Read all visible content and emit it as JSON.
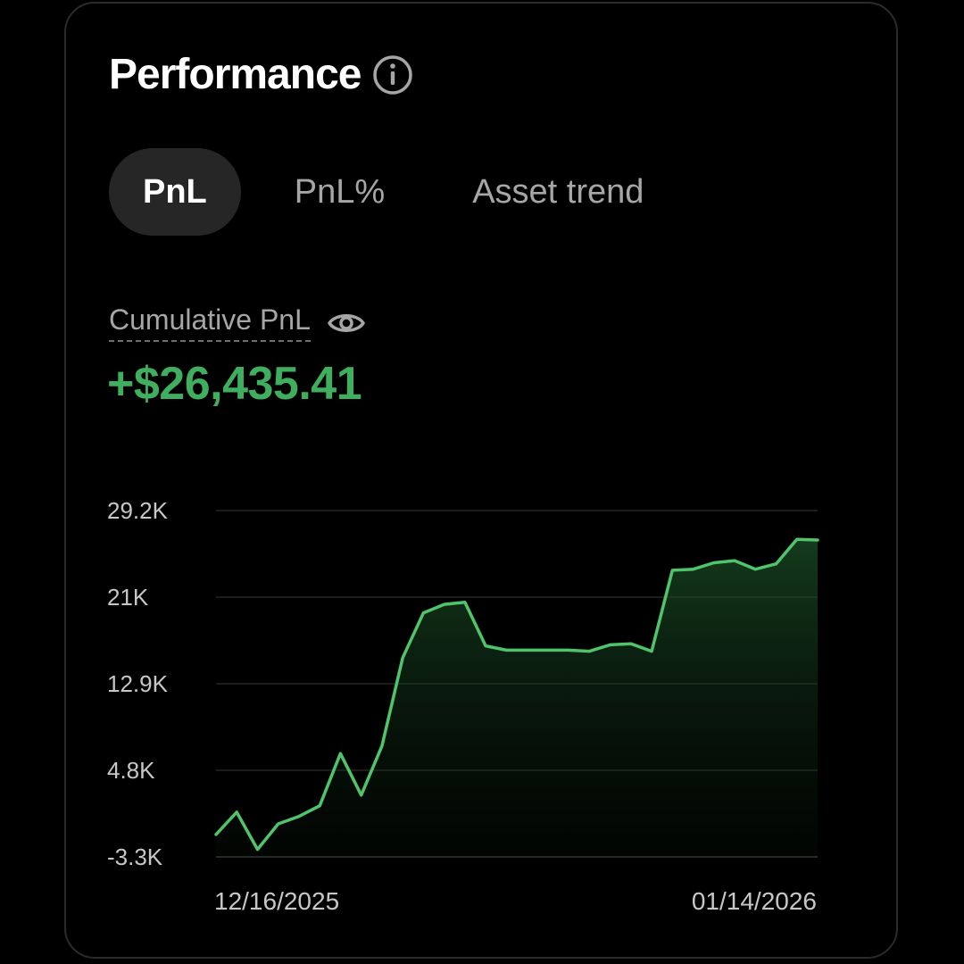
{
  "header": {
    "title": "Performance",
    "info_icon": "info-circle-icon"
  },
  "tabs": [
    {
      "label": "PnL",
      "active": true
    },
    {
      "label": "PnL%",
      "active": false
    },
    {
      "label": "Asset trend",
      "active": false
    }
  ],
  "metric": {
    "label": "Cumulative PnL",
    "eye_icon": "eye-icon",
    "value": "+$26,435.41",
    "value_color": "#3fae5f"
  },
  "colors": {
    "accent_green": "#4fc46a",
    "card_border": "#2b2b2b"
  },
  "chart_data": {
    "type": "area",
    "y_ticks": [
      "29.2K",
      "21K",
      "12.9K",
      "4.8K",
      "-3.3K"
    ],
    "ylim": [
      -3300,
      29200
    ],
    "x_tick_labels": [
      "12/16/2025",
      "01/14/2026"
    ],
    "grid": true,
    "series": [
      {
        "values": [
          -1200,
          900,
          -2600,
          -200,
          500,
          1500,
          6400,
          2500,
          7100,
          15400,
          19600,
          20400,
          20600,
          16500,
          16100,
          16100,
          16100,
          16100,
          16000,
          16600,
          16700,
          16000,
          23600,
          23700,
          24300,
          24500,
          23700,
          24200,
          26500,
          26435
        ]
      }
    ]
  }
}
